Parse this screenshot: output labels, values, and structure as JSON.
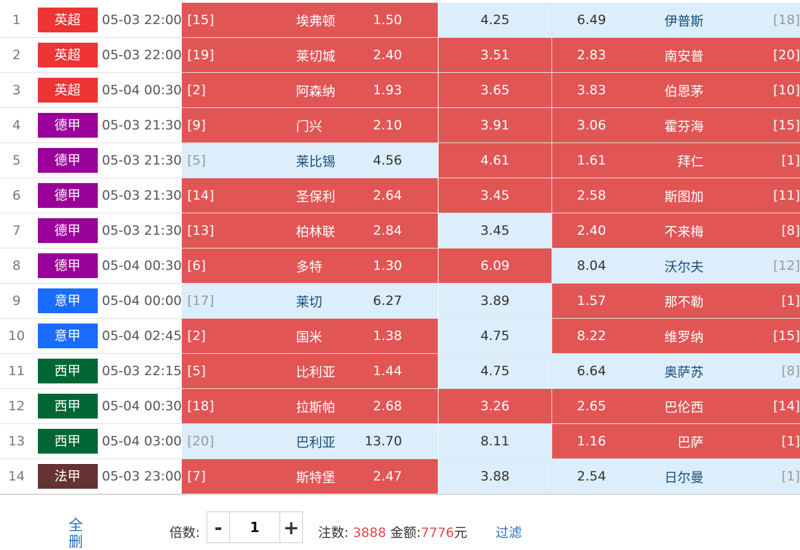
{
  "rows": [
    {
      "idx": "1",
      "league": "英超",
      "league_color": "#ee3333",
      "time": "05-03 22:00",
      "home_rank": "[15]",
      "home": "埃弗顿",
      "home_odd": "1.50",
      "home_sel": true,
      "draw": "4.25",
      "draw_sel": false,
      "away_odd": "6.49",
      "away": "伊普斯",
      "away_rank": "[18]",
      "away_sel": false
    },
    {
      "idx": "2",
      "league": "英超",
      "league_color": "#ee3333",
      "time": "05-03 22:00",
      "home_rank": "[19]",
      "home": "莱切城",
      "home_odd": "2.40",
      "home_sel": true,
      "draw": "3.51",
      "draw_sel": true,
      "away_odd": "2.83",
      "away": "南安普",
      "away_rank": "[20]",
      "away_sel": true
    },
    {
      "idx": "3",
      "league": "英超",
      "league_color": "#ee3333",
      "time": "05-04 00:30",
      "home_rank": "[2]",
      "home": "阿森纳",
      "home_odd": "1.93",
      "home_sel": true,
      "draw": "3.65",
      "draw_sel": true,
      "away_odd": "3.83",
      "away": "伯恩茅",
      "away_rank": "[10]",
      "away_sel": true
    },
    {
      "idx": "4",
      "league": "德甲",
      "league_color": "#990099",
      "time": "05-03 21:30",
      "home_rank": "[9]",
      "home": "门兴",
      "home_odd": "2.10",
      "home_sel": true,
      "draw": "3.91",
      "draw_sel": true,
      "away_odd": "3.06",
      "away": "霍芬海",
      "away_rank": "[15]",
      "away_sel": true
    },
    {
      "idx": "5",
      "league": "德甲",
      "league_color": "#990099",
      "time": "05-03 21:30",
      "home_rank": "[5]",
      "home": "莱比锡",
      "home_odd": "4.56",
      "home_sel": false,
      "draw": "4.61",
      "draw_sel": true,
      "away_odd": "1.61",
      "away": "拜仁",
      "away_rank": "[1]",
      "away_sel": true
    },
    {
      "idx": "6",
      "league": "德甲",
      "league_color": "#990099",
      "time": "05-03 21:30",
      "home_rank": "[14]",
      "home": "圣保利",
      "home_odd": "2.64",
      "home_sel": true,
      "draw": "3.45",
      "draw_sel": true,
      "away_odd": "2.58",
      "away": "斯图加",
      "away_rank": "[11]",
      "away_sel": true
    },
    {
      "idx": "7",
      "league": "德甲",
      "league_color": "#990099",
      "time": "05-03 21:30",
      "home_rank": "[13]",
      "home": "柏林联",
      "home_odd": "2.84",
      "home_sel": true,
      "draw": "3.45",
      "draw_sel": false,
      "away_odd": "2.40",
      "away": "不来梅",
      "away_rank": "[8]",
      "away_sel": true
    },
    {
      "idx": "8",
      "league": "德甲",
      "league_color": "#990099",
      "time": "05-04 00:30",
      "home_rank": "[6]",
      "home": "多特",
      "home_odd": "1.30",
      "home_sel": true,
      "draw": "6.09",
      "draw_sel": true,
      "away_odd": "8.04",
      "away": "沃尔夫",
      "away_rank": "[12]",
      "away_sel": false
    },
    {
      "idx": "9",
      "league": "意甲",
      "league_color": "#1a6bff",
      "time": "05-04 00:00",
      "home_rank": "[17]",
      "home": "莱切",
      "home_odd": "6.27",
      "home_sel": false,
      "draw": "3.89",
      "draw_sel": false,
      "away_odd": "1.57",
      "away": "那不勒",
      "away_rank": "[1]",
      "away_sel": true
    },
    {
      "idx": "10",
      "league": "意甲",
      "league_color": "#1a6bff",
      "time": "05-04 02:45",
      "home_rank": "[2]",
      "home": "国米",
      "home_odd": "1.38",
      "home_sel": true,
      "draw": "4.75",
      "draw_sel": false,
      "away_odd": "8.22",
      "away": "维罗纳",
      "away_rank": "[15]",
      "away_sel": true
    },
    {
      "idx": "11",
      "league": "西甲",
      "league_color": "#006633",
      "time": "05-03 22:15",
      "home_rank": "[5]",
      "home": "比利亚",
      "home_odd": "1.44",
      "home_sel": true,
      "draw": "4.75",
      "draw_sel": false,
      "away_odd": "6.64",
      "away": "奥萨苏",
      "away_rank": "[8]",
      "away_sel": false
    },
    {
      "idx": "12",
      "league": "西甲",
      "league_color": "#006633",
      "time": "05-04 00:30",
      "home_rank": "[18]",
      "home": "拉斯帕",
      "home_odd": "2.68",
      "home_sel": true,
      "draw": "3.26",
      "draw_sel": true,
      "away_odd": "2.65",
      "away": "巴伦西",
      "away_rank": "[14]",
      "away_sel": true
    },
    {
      "idx": "13",
      "league": "西甲",
      "league_color": "#006633",
      "time": "05-04 03:00",
      "home_rank": "[20]",
      "home": "巴利亚",
      "home_odd": "13.70",
      "home_sel": false,
      "draw": "8.11",
      "draw_sel": false,
      "away_odd": "1.16",
      "away": "巴萨",
      "away_rank": "[1]",
      "away_sel": true
    },
    {
      "idx": "14",
      "league": "法甲",
      "league_color": "#663333",
      "time": "05-03 23:00",
      "home_rank": "[7]",
      "home": "斯特堡",
      "home_odd": "2.47",
      "home_sel": true,
      "draw": "3.88",
      "draw_sel": false,
      "away_odd": "2.54",
      "away": "日尔曼",
      "away_rank": "[1]",
      "away_sel": false
    }
  ],
  "footer": {
    "clear_label": "全删",
    "multiplier_label": "倍数:",
    "minus": "-",
    "plus": "+",
    "multiplier_value": "1",
    "bets_label": "注数:",
    "bets_value": "3888",
    "amount_label": "金额:",
    "amount_value": "7776",
    "currency": "元",
    "filter_label": "过滤"
  }
}
